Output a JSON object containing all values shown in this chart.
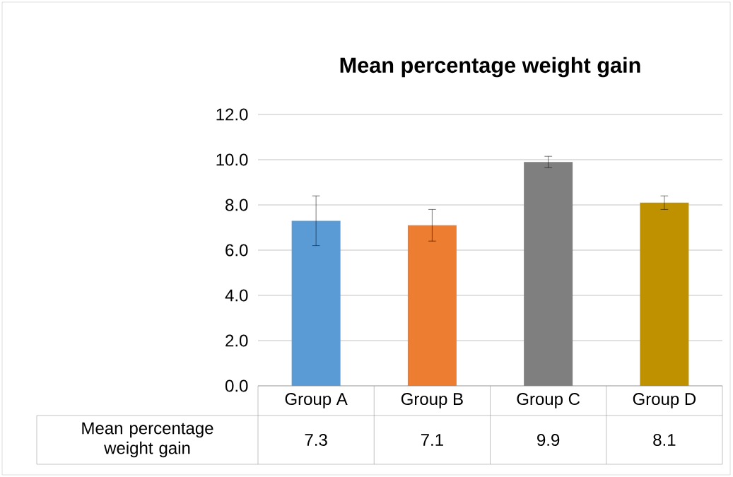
{
  "chart_data": {
    "type": "bar",
    "title": "Mean percentage weight gain",
    "categories": [
      "Group A",
      "Group B",
      "Group C",
      "Group D"
    ],
    "series": [
      {
        "name": "Mean percentage weight gain",
        "colors": [
          "#5b9bd5",
          "#ed7d31",
          "#7f7f7f",
          "#bf9000"
        ],
        "values": [
          7.3,
          7.1,
          9.9,
          8.1
        ],
        "errors": [
          1.1,
          0.7,
          0.25,
          0.3
        ]
      }
    ],
    "ylim": [
      0,
      12
    ],
    "yticks": [
      {
        "value": 0,
        "label": "0.0"
      },
      {
        "value": 2,
        "label": "2.0"
      },
      {
        "value": 4,
        "label": "4.0"
      },
      {
        "value": 6,
        "label": "6.0"
      },
      {
        "value": 8,
        "label": "8.0"
      },
      {
        "value": 10,
        "label": "10.0"
      },
      {
        "value": 12,
        "label": "12.0"
      }
    ],
    "grid": "y",
    "data_labels": true
  }
}
